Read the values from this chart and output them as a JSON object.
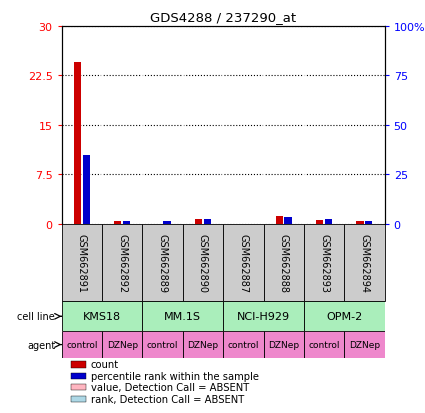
{
  "title": "GDS4288 / 237290_at",
  "samples": [
    "GSM662891",
    "GSM662892",
    "GSM662889",
    "GSM662890",
    "GSM662887",
    "GSM662888",
    "GSM662893",
    "GSM662894"
  ],
  "count_values": [
    24.5,
    0.35,
    0.0,
    0.7,
    0.0,
    1.1,
    0.5,
    0.35
  ],
  "rank_values": [
    35.0,
    1.2,
    1.6,
    2.5,
    0.0,
    3.5,
    2.2,
    1.6
  ],
  "absent_count": [
    false,
    false,
    false,
    false,
    true,
    false,
    false,
    false
  ],
  "absent_rank": [
    false,
    false,
    false,
    false,
    true,
    false,
    false,
    false
  ],
  "cell_lines": [
    {
      "label": "KMS18",
      "span": [
        0,
        2
      ]
    },
    {
      "label": "MM.1S",
      "span": [
        2,
        4
      ]
    },
    {
      "label": "NCI-H929",
      "span": [
        4,
        6
      ]
    },
    {
      "label": "OPM-2",
      "span": [
        6,
        8
      ]
    }
  ],
  "agents": [
    "control",
    "DZNep",
    "control",
    "DZNep",
    "control",
    "DZNep",
    "control",
    "DZNep"
  ],
  "cell_line_color": "#aaeebb",
  "agent_color": "#ee88cc",
  "sample_bg_color": "#cccccc",
  "left_yticks": [
    0,
    7.5,
    15,
    22.5,
    30
  ],
  "left_ylabels": [
    "0",
    "7.5",
    "15",
    "22.5",
    "30"
  ],
  "right_yticks": [
    0,
    25,
    50,
    75,
    100
  ],
  "right_ylabels": [
    "0",
    "25",
    "50",
    "75",
    "100%"
  ],
  "ylim_left": [
    0,
    30
  ],
  "ylim_right": [
    0,
    100
  ],
  "bar_width": 0.18,
  "count_color": "#cc0000",
  "rank_color": "#0000cc",
  "absent_count_color": "#ffb6c1",
  "absent_rank_color": "#add8e6",
  "legend_items": [
    {
      "color": "#cc0000",
      "label": "count"
    },
    {
      "color": "#0000cc",
      "label": "percentile rank within the sample"
    },
    {
      "color": "#ffb6c1",
      "label": "value, Detection Call = ABSENT"
    },
    {
      "color": "#add8e6",
      "label": "rank, Detection Call = ABSENT"
    }
  ]
}
